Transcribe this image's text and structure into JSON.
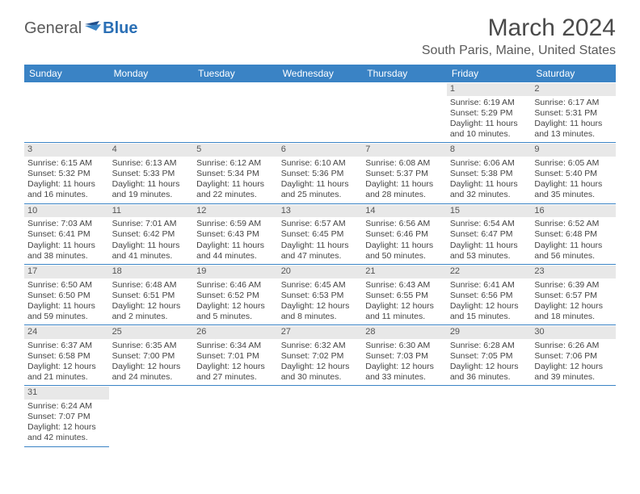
{
  "brand": {
    "part1": "General",
    "part2": "Blue"
  },
  "title": "March 2024",
  "location": "South Paris, Maine, United States",
  "colors": {
    "header_bg": "#3a83c5",
    "header_text": "#ffffff",
    "border": "#3a83c5",
    "daynum_bg": "#e8e8e8",
    "brand_blue": "#2a6fb5",
    "text": "#444444"
  },
  "weekdays": [
    "Sunday",
    "Monday",
    "Tuesday",
    "Wednesday",
    "Thursday",
    "Friday",
    "Saturday"
  ],
  "weeks": [
    [
      null,
      null,
      null,
      null,
      null,
      {
        "n": "1",
        "sr": "Sunrise: 6:19 AM",
        "ss": "Sunset: 5:29 PM",
        "dl": "Daylight: 11 hours and 10 minutes."
      },
      {
        "n": "2",
        "sr": "Sunrise: 6:17 AM",
        "ss": "Sunset: 5:31 PM",
        "dl": "Daylight: 11 hours and 13 minutes."
      }
    ],
    [
      {
        "n": "3",
        "sr": "Sunrise: 6:15 AM",
        "ss": "Sunset: 5:32 PM",
        "dl": "Daylight: 11 hours and 16 minutes."
      },
      {
        "n": "4",
        "sr": "Sunrise: 6:13 AM",
        "ss": "Sunset: 5:33 PM",
        "dl": "Daylight: 11 hours and 19 minutes."
      },
      {
        "n": "5",
        "sr": "Sunrise: 6:12 AM",
        "ss": "Sunset: 5:34 PM",
        "dl": "Daylight: 11 hours and 22 minutes."
      },
      {
        "n": "6",
        "sr": "Sunrise: 6:10 AM",
        "ss": "Sunset: 5:36 PM",
        "dl": "Daylight: 11 hours and 25 minutes."
      },
      {
        "n": "7",
        "sr": "Sunrise: 6:08 AM",
        "ss": "Sunset: 5:37 PM",
        "dl": "Daylight: 11 hours and 28 minutes."
      },
      {
        "n": "8",
        "sr": "Sunrise: 6:06 AM",
        "ss": "Sunset: 5:38 PM",
        "dl": "Daylight: 11 hours and 32 minutes."
      },
      {
        "n": "9",
        "sr": "Sunrise: 6:05 AM",
        "ss": "Sunset: 5:40 PM",
        "dl": "Daylight: 11 hours and 35 minutes."
      }
    ],
    [
      {
        "n": "10",
        "sr": "Sunrise: 7:03 AM",
        "ss": "Sunset: 6:41 PM",
        "dl": "Daylight: 11 hours and 38 minutes."
      },
      {
        "n": "11",
        "sr": "Sunrise: 7:01 AM",
        "ss": "Sunset: 6:42 PM",
        "dl": "Daylight: 11 hours and 41 minutes."
      },
      {
        "n": "12",
        "sr": "Sunrise: 6:59 AM",
        "ss": "Sunset: 6:43 PM",
        "dl": "Daylight: 11 hours and 44 minutes."
      },
      {
        "n": "13",
        "sr": "Sunrise: 6:57 AM",
        "ss": "Sunset: 6:45 PM",
        "dl": "Daylight: 11 hours and 47 minutes."
      },
      {
        "n": "14",
        "sr": "Sunrise: 6:56 AM",
        "ss": "Sunset: 6:46 PM",
        "dl": "Daylight: 11 hours and 50 minutes."
      },
      {
        "n": "15",
        "sr": "Sunrise: 6:54 AM",
        "ss": "Sunset: 6:47 PM",
        "dl": "Daylight: 11 hours and 53 minutes."
      },
      {
        "n": "16",
        "sr": "Sunrise: 6:52 AM",
        "ss": "Sunset: 6:48 PM",
        "dl": "Daylight: 11 hours and 56 minutes."
      }
    ],
    [
      {
        "n": "17",
        "sr": "Sunrise: 6:50 AM",
        "ss": "Sunset: 6:50 PM",
        "dl": "Daylight: 11 hours and 59 minutes."
      },
      {
        "n": "18",
        "sr": "Sunrise: 6:48 AM",
        "ss": "Sunset: 6:51 PM",
        "dl": "Daylight: 12 hours and 2 minutes."
      },
      {
        "n": "19",
        "sr": "Sunrise: 6:46 AM",
        "ss": "Sunset: 6:52 PM",
        "dl": "Daylight: 12 hours and 5 minutes."
      },
      {
        "n": "20",
        "sr": "Sunrise: 6:45 AM",
        "ss": "Sunset: 6:53 PM",
        "dl": "Daylight: 12 hours and 8 minutes."
      },
      {
        "n": "21",
        "sr": "Sunrise: 6:43 AM",
        "ss": "Sunset: 6:55 PM",
        "dl": "Daylight: 12 hours and 11 minutes."
      },
      {
        "n": "22",
        "sr": "Sunrise: 6:41 AM",
        "ss": "Sunset: 6:56 PM",
        "dl": "Daylight: 12 hours and 15 minutes."
      },
      {
        "n": "23",
        "sr": "Sunrise: 6:39 AM",
        "ss": "Sunset: 6:57 PM",
        "dl": "Daylight: 12 hours and 18 minutes."
      }
    ],
    [
      {
        "n": "24",
        "sr": "Sunrise: 6:37 AM",
        "ss": "Sunset: 6:58 PM",
        "dl": "Daylight: 12 hours and 21 minutes."
      },
      {
        "n": "25",
        "sr": "Sunrise: 6:35 AM",
        "ss": "Sunset: 7:00 PM",
        "dl": "Daylight: 12 hours and 24 minutes."
      },
      {
        "n": "26",
        "sr": "Sunrise: 6:34 AM",
        "ss": "Sunset: 7:01 PM",
        "dl": "Daylight: 12 hours and 27 minutes."
      },
      {
        "n": "27",
        "sr": "Sunrise: 6:32 AM",
        "ss": "Sunset: 7:02 PM",
        "dl": "Daylight: 12 hours and 30 minutes."
      },
      {
        "n": "28",
        "sr": "Sunrise: 6:30 AM",
        "ss": "Sunset: 7:03 PM",
        "dl": "Daylight: 12 hours and 33 minutes."
      },
      {
        "n": "29",
        "sr": "Sunrise: 6:28 AM",
        "ss": "Sunset: 7:05 PM",
        "dl": "Daylight: 12 hours and 36 minutes."
      },
      {
        "n": "30",
        "sr": "Sunrise: 6:26 AM",
        "ss": "Sunset: 7:06 PM",
        "dl": "Daylight: 12 hours and 39 minutes."
      }
    ],
    [
      {
        "n": "31",
        "sr": "Sunrise: 6:24 AM",
        "ss": "Sunset: 7:07 PM",
        "dl": "Daylight: 12 hours and 42 minutes."
      },
      null,
      null,
      null,
      null,
      null,
      null
    ]
  ]
}
